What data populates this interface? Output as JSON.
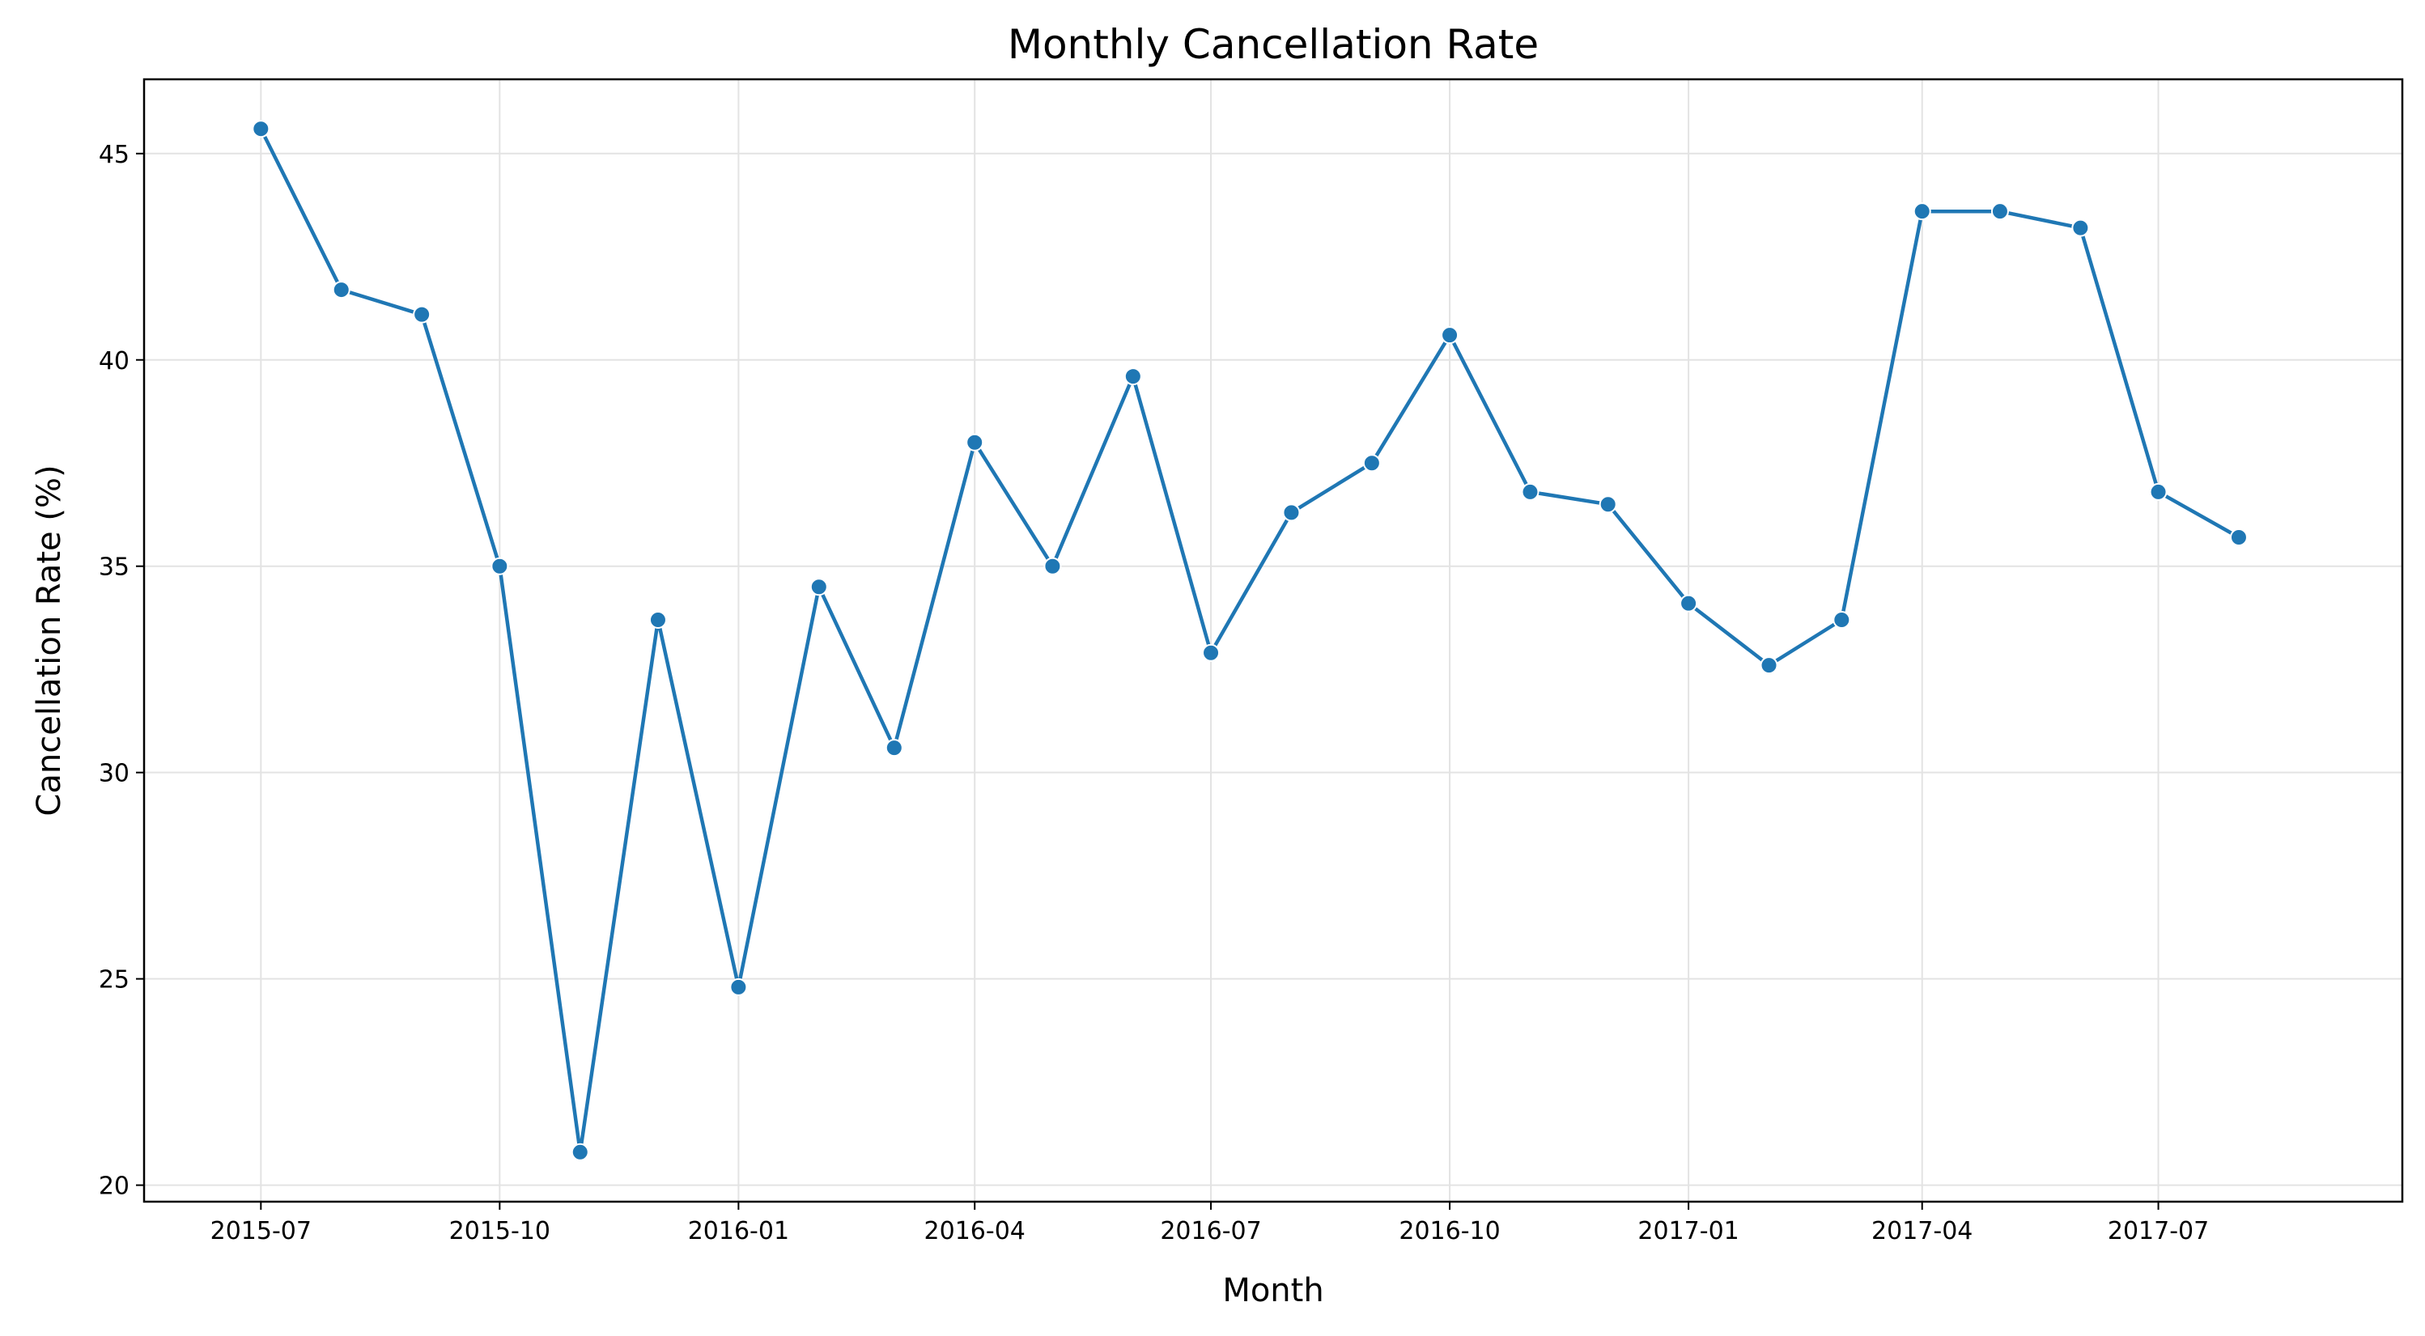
{
  "chart_data": {
    "type": "line",
    "title": "Monthly Cancellation Rate",
    "xlabel": "Month",
    "ylabel": "Cancellation Rate (%)",
    "x": [
      "2015-07",
      "2015-08",
      "2015-09",
      "2015-10",
      "2015-11",
      "2015-12",
      "2016-01",
      "2016-02",
      "2016-03",
      "2016-04",
      "2016-05",
      "2016-06",
      "2016-07",
      "2016-08",
      "2016-09",
      "2016-10",
      "2016-11",
      "2016-12",
      "2017-01",
      "2017-02",
      "2017-03",
      "2017-04",
      "2017-05",
      "2017-06",
      "2017-07",
      "2017-08"
    ],
    "series": [
      {
        "values": [
          45.6,
          41.7,
          41.1,
          35.0,
          20.8,
          33.7,
          24.8,
          34.5,
          30.6,
          38.0,
          35.0,
          39.6,
          32.9,
          36.3,
          37.5,
          40.6,
          36.8,
          36.5,
          34.1,
          32.6,
          33.7,
          43.6,
          43.6,
          43.2,
          36.8,
          35.7
        ],
        "color": "#1f77b4"
      }
    ],
    "xticks": [
      "2015-07",
      "2015-10",
      "2016-01",
      "2016-04",
      "2016-07",
      "2016-10",
      "2017-01",
      "2017-04",
      "2017-07"
    ],
    "yticks": [
      20,
      25,
      30,
      35,
      40,
      45
    ],
    "ylim": [
      19.6,
      46.8
    ],
    "xlim": [
      "2015-05-17",
      "2017-10-03"
    ],
    "grid": true
  }
}
